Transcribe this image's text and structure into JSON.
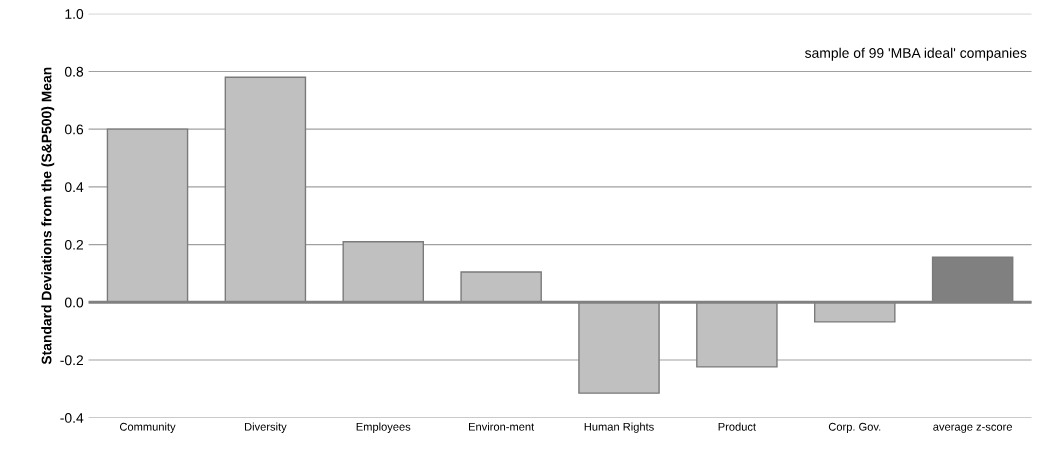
{
  "chart_data": {
    "type": "bar",
    "ylabel": "Standard Deviations from the (S&P500) Mean",
    "categories": [
      "Community",
      "Diversity",
      "Employees",
      "Environ-ment",
      "Human Rights",
      "Product",
      "Corp. Gov.",
      "average z-score"
    ],
    "values": [
      0.6,
      0.78,
      0.21,
      0.105,
      -0.315,
      -0.224,
      -0.068,
      0.156
    ],
    "colors": [
      "#c0c0c0",
      "#c0c0c0",
      "#c0c0c0",
      "#c0c0c0",
      "#c0c0c0",
      "#c0c0c0",
      "#c0c0c0",
      "#808080"
    ],
    "ylim": [
      -0.4,
      1.0
    ],
    "yticks": [
      {
        "value": -0.4,
        "label": "-0.4"
      },
      {
        "value": -0.2,
        "label": "-0.2"
      },
      {
        "value": 0,
        "label": "0.0"
      },
      {
        "value": 0.2,
        "label": "0.2"
      },
      {
        "value": 0.4,
        "label": "0.4"
      },
      {
        "value": 0.6,
        "label": "0.6"
      },
      {
        "value": 0.8,
        "label": "0.8"
      },
      {
        "value": 1.0,
        "label": "1.0"
      }
    ],
    "grid": "y",
    "ref_lines": [
      {
        "axis": "y",
        "value": 0,
        "color": "#808080"
      }
    ],
    "annotations": [
      "sample of 99 'MBA ideal' companies"
    ]
  }
}
